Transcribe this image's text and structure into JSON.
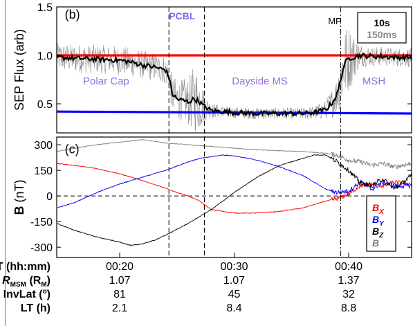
{
  "chart_data": [
    {
      "panel": "(b)",
      "type": "line",
      "ylabel": "SEP Flux (arb)",
      "ylim": [
        0.2,
        1.5
      ],
      "yticks": [
        "1.5",
        "1.0",
        "0.5"
      ],
      "ytick_values": [
        1.5,
        1.0,
        0.5
      ],
      "xlim": [
        14.5,
        45.5
      ],
      "series": [
        {
          "name": "10s",
          "color": "#000000",
          "x": [
            14.5,
            16,
            18,
            20,
            21,
            22,
            23,
            24,
            24.3,
            24.6,
            25,
            26,
            26.5,
            27,
            27.3,
            27.6,
            28,
            29,
            30,
            32,
            34,
            36,
            37,
            38,
            38.5,
            39,
            39.3,
            39.6,
            40,
            41,
            42,
            43,
            44,
            45.5
          ],
          "y": [
            0.98,
            0.97,
            0.96,
            0.95,
            0.93,
            0.9,
            0.88,
            0.85,
            0.78,
            0.6,
            0.55,
            0.52,
            0.55,
            0.52,
            0.48,
            0.46,
            0.43,
            0.42,
            0.41,
            0.4,
            0.4,
            0.4,
            0.41,
            0.44,
            0.5,
            0.6,
            0.75,
            0.9,
            0.97,
            1.0,
            0.99,
            0.99,
            0.98,
            0.98
          ]
        },
        {
          "name": "150ms",
          "color": "#8c8c8c",
          "noise_amplitude": [
            0.15,
            0.15,
            0.15,
            0.15,
            0.15,
            0.15,
            0.15,
            0.15,
            0.15,
            0.2,
            0.2,
            0.25,
            0.35,
            0.3,
            0.2,
            0.12,
            0.08,
            0.06,
            0.06,
            0.06,
            0.06,
            0.06,
            0.07,
            0.1,
            0.15,
            0.2,
            0.3,
            0.4,
            0.35,
            0.12,
            0.1,
            0.1,
            0.1,
            0.1
          ]
        },
        {
          "name": "",
          "color": "#ff0000",
          "x": [
            14.5,
            45.5
          ],
          "y": [
            1.0,
            1.0
          ]
        },
        {
          "name": "",
          "color": "#0000ff",
          "x": [
            14.5,
            45.5
          ],
          "y": [
            0.42,
            0.4
          ]
        }
      ],
      "annotations": [
        {
          "text": "(b)",
          "x": 15.2,
          "y": 1.38,
          "color": "#000000",
          "size": 18
        },
        {
          "text": "PCBL",
          "x": 24.3,
          "y": 1.37,
          "color": "#7b68ee",
          "size": 14
        },
        {
          "text": "MP",
          "x": 38.2,
          "y": 1.32,
          "color": "#000000",
          "size": 13
        },
        {
          "text": "Polar Cap",
          "x": 16.8,
          "y": 0.7,
          "color": "#9370db",
          "size": 15
        },
        {
          "text": "Dayside MS",
          "x": 29.8,
          "y": 0.7,
          "color": "#9370db",
          "size": 15
        },
        {
          "text": "MSH",
          "x": 41.2,
          "y": 0.7,
          "color": "#9370db",
          "size": 15
        }
      ],
      "legend": {
        "placement": "top-right",
        "entries": [
          "10s",
          "150ms"
        ],
        "colors": [
          "#000000",
          "#8c8c8c"
        ]
      }
    },
    {
      "panel": "(c)",
      "type": "line",
      "ylabel": "B (nT)",
      "ylim": [
        -360,
        345
      ],
      "yticks": [
        "300",
        "150",
        "0",
        "-150",
        "-300"
      ],
      "ytick_values": [
        300,
        150,
        0,
        -150,
        -300
      ],
      "xlim": [
        14.5,
        45.5
      ],
      "xticks": [
        "00:20",
        "00:30",
        "00:40"
      ],
      "xtick_values": [
        20,
        30,
        40
      ],
      "series": [
        {
          "name": "BX",
          "color": "#ff0000",
          "x": [
            14.5,
            16,
            18,
            20,
            22,
            24,
            25,
            26,
            27,
            28,
            29,
            30,
            32,
            34,
            36,
            37,
            38,
            39,
            40,
            41,
            42,
            43,
            44,
            45.5
          ],
          "y": [
            190,
            180,
            160,
            130,
            90,
            45,
            20,
            0,
            -30,
            -80,
            -90,
            -100,
            -100,
            -90,
            -70,
            -50,
            -30,
            -15,
            10,
            60,
            70,
            60,
            80,
            70
          ]
        },
        {
          "name": "BY",
          "color": "#0000ff",
          "x": [
            14.5,
            16,
            18,
            20,
            22,
            24,
            26,
            27,
            28,
            29,
            30,
            32,
            34,
            36,
            37,
            38,
            39,
            40,
            41,
            42,
            43,
            44,
            45.5
          ],
          "y": [
            -70,
            -40,
            20,
            70,
            110,
            150,
            200,
            220,
            230,
            240,
            235,
            210,
            170,
            120,
            80,
            40,
            20,
            30,
            80,
            40,
            80,
            60,
            60
          ]
        },
        {
          "name": "BZ",
          "color": "#000000",
          "x": [
            14.5,
            16,
            18,
            20,
            21,
            22,
            23,
            24,
            26,
            28,
            30,
            32,
            34,
            36,
            37,
            38,
            39,
            40,
            41,
            42,
            43,
            44,
            45.5
          ],
          "y": [
            -160,
            -200,
            -240,
            -270,
            -290,
            -280,
            -260,
            -230,
            -160,
            -80,
            20,
            110,
            180,
            220,
            240,
            240,
            200,
            150,
            80,
            60,
            100,
            40,
            120
          ]
        },
        {
          "name": "B",
          "color": "#808080",
          "x": [
            14.5,
            16,
            18,
            20,
            22,
            23,
            24,
            26,
            28,
            30,
            32,
            34,
            36,
            38,
            39,
            40,
            41,
            42,
            43,
            44,
            45.5
          ],
          "y": [
            260,
            280,
            300,
            315,
            330,
            320,
            310,
            300,
            290,
            280,
            270,
            265,
            260,
            250,
            240,
            210,
            200,
            180,
            190,
            170,
            190
          ]
        }
      ],
      "annotations": [
        {
          "text": "(c)",
          "x": 15.2,
          "y": 290,
          "color": "#000000",
          "size": 18
        }
      ],
      "legend": {
        "placement": "bottom-right",
        "entries": [
          {
            "main": "B",
            "sub": "X",
            "color": "#ff0000"
          },
          {
            "main": "B",
            "sub": "Y",
            "color": "#0000ff"
          },
          {
            "main": "B",
            "sub": "Z",
            "color": "#000000"
          },
          {
            "main": "B",
            "sub": "",
            "color": "#808080"
          }
        ]
      }
    }
  ],
  "vertical_markers": [
    {
      "x": 24.3,
      "style": "dashed",
      "color": "#000000"
    },
    {
      "x": 27.4,
      "style": "dashed",
      "color": "#000000"
    },
    {
      "x": 39.3,
      "style": "dashdot",
      "color": "#000000"
    }
  ],
  "ephemeris": {
    "rows": [
      {
        "label": "UT (hh:mm)",
        "values": [
          "00:20",
          "00:30",
          "00:40"
        ]
      },
      {
        "label": "R",
        "label_sub": "MSM",
        "label_suffix": " (R",
        "label_sub2": "M",
        "label_end": ")",
        "values": [
          "1.07",
          "1.07",
          "1.37"
        ]
      },
      {
        "label": "InvLat (",
        "label_sup": "o",
        "label_end": ")",
        "values": [
          "81",
          "45",
          "32"
        ]
      },
      {
        "label": "LT (h)",
        "values": [
          "2.1",
          "8.4",
          "8.8"
        ]
      }
    ]
  }
}
